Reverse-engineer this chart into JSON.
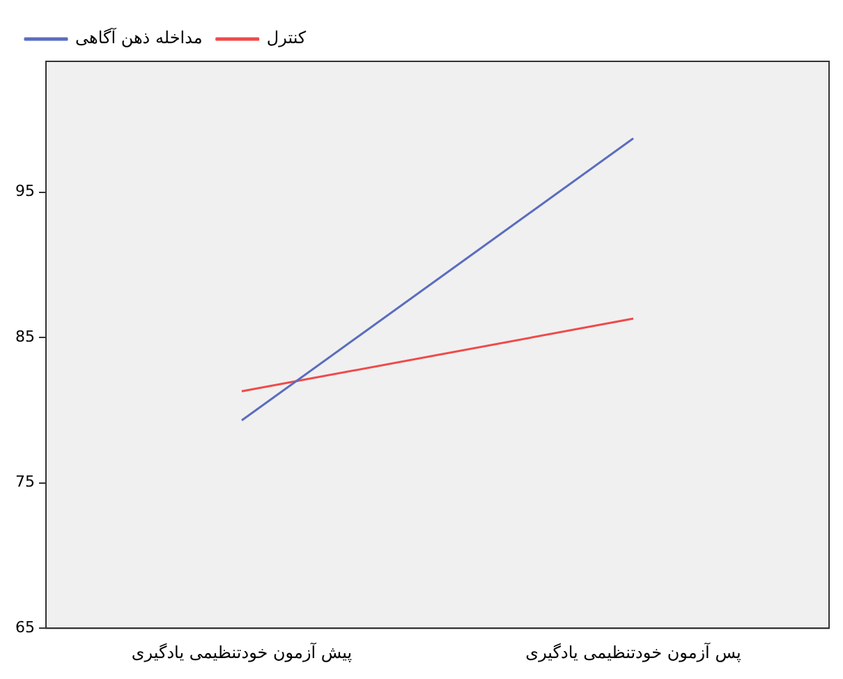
{
  "chart_data": {
    "type": "line",
    "categories": [
      "پیش آزمون خودتنظیمی یادگیری",
      "پس آزمون خودتنظیمی یادگیری"
    ],
    "series": [
      {
        "name": "مداخله ذهن آگاهی",
        "color": "#5a6dbf",
        "values": [
          79.3,
          98.7
        ]
      },
      {
        "name": "کنترل",
        "color": "#f04a4a",
        "values": [
          81.3,
          86.3
        ]
      }
    ],
    "ylim": [
      65,
      104
    ],
    "yticks": [
      65,
      75,
      85,
      95
    ],
    "grid": false,
    "legend": "top left",
    "marker": "none",
    "line_style": "solid"
  }
}
